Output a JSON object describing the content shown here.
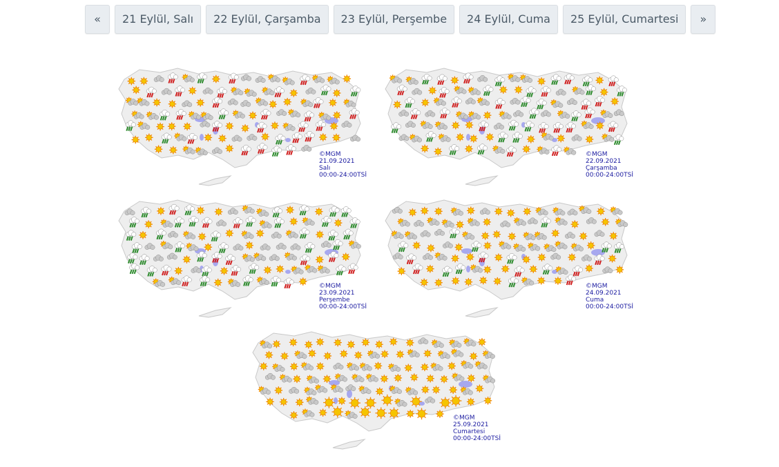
{
  "pager": {
    "prev_label": "«",
    "next_label": "»",
    "days": [
      {
        "label": "21 Eylül, Salı"
      },
      {
        "label": "22 Eylül, Çarşamba"
      },
      {
        "label": "23 Eylül, Perşembe"
      },
      {
        "label": "24 Eylül, Cuma"
      },
      {
        "label": "25 Eylül, Cumartesi"
      }
    ]
  },
  "maps": [
    {
      "copyright": "©MGM",
      "date": "21.09.2021",
      "day": "Salı",
      "period": "00:00-24:00TSİ"
    },
    {
      "copyright": "©MGM",
      "date": "22.09.2021",
      "day": "Çarşamba",
      "period": "00:00-24:00TSİ"
    },
    {
      "copyright": "©MGM",
      "date": "23.09.2021",
      "day": "Perşembe",
      "period": "00:00-24:00TSİ"
    },
    {
      "copyright": "©MGM",
      "date": "24.09.2021",
      "day": "Cuma",
      "period": "00:00-24:00TSİ"
    },
    {
      "copyright": "©MGM",
      "date": "25.09.2021",
      "day": "Cumartesi",
      "period": "00:00-24:00TSİ"
    }
  ],
  "colors": {
    "map_fill": "#eeeeee",
    "map_border": "#c8c8c8",
    "lake": "#a7a8ef",
    "sun": "#f5c400",
    "sun_core": "#f08a00",
    "cloud": "#c9c9c9",
    "rain": "#2e8b2e",
    "storm": "#d02020",
    "caption": "#1a1aa0"
  }
}
